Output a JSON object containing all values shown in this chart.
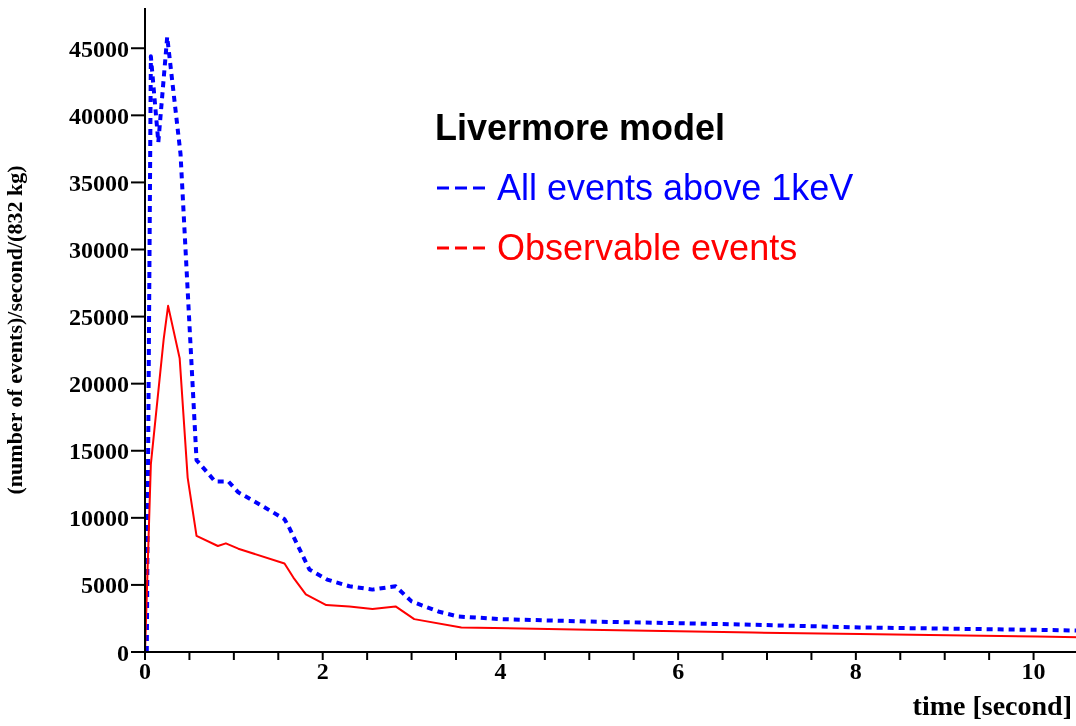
{
  "chart_data": {
    "type": "line",
    "xlabel": "time [second]",
    "ylabel": "(number of events)/second/(832 kg)",
    "legend_title": "Livermore model",
    "legend": "top right",
    "xlim": [
      0,
      10.5
    ],
    "ylim": [
      0,
      48000
    ],
    "xticks": [
      0,
      {
        "value": 0.5,
        "label": null
      },
      {
        "value": 1,
        "label": null
      },
      {
        "value": 1.5,
        "label": null
      },
      2,
      {
        "value": 2.5,
        "label": null
      },
      {
        "value": 3,
        "label": null
      },
      {
        "value": 3.5,
        "label": null
      },
      4,
      {
        "value": 4.5,
        "label": null
      },
      {
        "value": 5,
        "label": null
      },
      {
        "value": 5.5,
        "label": null
      },
      6,
      {
        "value": 6.5,
        "label": null
      },
      {
        "value": 7,
        "label": null
      },
      {
        "value": 7.5,
        "label": null
      },
      8,
      {
        "value": 8.5,
        "label": null
      },
      {
        "value": 9,
        "label": null
      },
      {
        "value": 9.5,
        "label": null
      },
      10
    ],
    "yticks": [
      0,
      5000,
      10000,
      15000,
      20000,
      25000,
      30000,
      35000,
      40000,
      45000
    ],
    "series": [
      {
        "name": "All events above 1keV",
        "color": "#0000ff",
        "line_style": "dashed",
        "x": [
          0.02,
          0.066,
          0.15,
          0.25,
          0.4,
          0.58,
          0.79,
          0.94,
          1.05,
          1.29,
          1.57,
          1.62,
          1.85,
          2.05,
          2.3,
          2.56,
          2.82,
          3.0,
          3.3,
          3.52,
          4.01,
          4.99,
          6.0,
          6.84,
          8.04,
          10.04,
          10.5
        ],
        "values": [
          0,
          44400,
          38000,
          45850,
          37100,
          14300,
          12700,
          12700,
          11900,
          11000,
          9900,
          9300,
          6150,
          5400,
          4900,
          4650,
          4900,
          3770,
          3020,
          2650,
          2450,
          2270,
          2150,
          2030,
          1830,
          1650,
          1600
        ]
      },
      {
        "name": "Observable events",
        "color": "#ff0000",
        "line_style": "solid",
        "x": [
          0.0,
          0.066,
          0.21,
          0.26,
          0.39,
          0.48,
          0.58,
          0.82,
          0.91,
          1.05,
          1.57,
          1.67,
          1.81,
          2.04,
          2.3,
          2.56,
          2.82,
          3.03,
          3.56,
          4.99,
          6.84,
          8.04,
          10.04,
          10.5
        ],
        "values": [
          0,
          14000,
          23300,
          25800,
          21900,
          13000,
          8650,
          7900,
          8100,
          7700,
          6600,
          5550,
          4300,
          3500,
          3400,
          3200,
          3400,
          2450,
          1830,
          1650,
          1450,
          1350,
          1150,
          1100
        ]
      }
    ]
  }
}
